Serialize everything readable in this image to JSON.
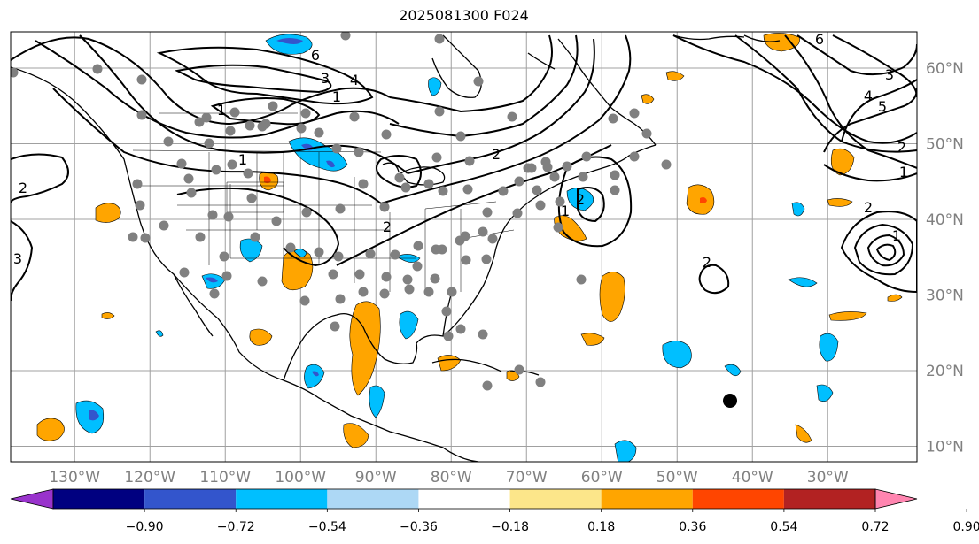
{
  "title": "2025081300 F024",
  "lat_labels": [
    {
      "text": "60°N",
      "lat": 60
    },
    {
      "text": "50°N",
      "lat": 50
    },
    {
      "text": "40°N",
      "lat": 40
    },
    {
      "text": "30°N",
      "lat": 30
    },
    {
      "text": "20°N",
      "lat": 20
    },
    {
      "text": "10°N",
      "lat": 10
    }
  ],
  "lon_labels": [
    {
      "text": "130°W",
      "lon": -130
    },
    {
      "text": "120°W",
      "lon": -120
    },
    {
      "text": "110°W",
      "lon": -110
    },
    {
      "text": "100°W",
      "lon": -100
    },
    {
      "text": "90°W",
      "lon": -90
    },
    {
      "text": "80°W",
      "lon": -80
    },
    {
      "text": "70°W",
      "lon": -70
    },
    {
      "text": "60°W",
      "lon": -60
    },
    {
      "text": "50°W",
      "lon": -50
    },
    {
      "text": "40°W",
      "lon": -40
    },
    {
      "text": "30°W",
      "lon": -30
    }
  ],
  "colorbar": {
    "colors": [
      "#9933cc",
      "#000080",
      "#3355cc",
      "#00bfff",
      "#add8f5",
      "#ffffff",
      "#fce68a",
      "#ffa500",
      "#ff4500",
      "#b22222",
      "#ff85b0"
    ],
    "tick_labels": [
      "−0.90",
      "−0.72",
      "−0.54",
      "−0.36",
      "−0.18",
      "0.18",
      "0.36",
      "0.54",
      "0.72",
      "0.90"
    ]
  },
  "contour_labels": [
    "6",
    "4",
    "3",
    "1",
    "1",
    "2",
    "2",
    "1",
    "2",
    "1",
    "2",
    "3",
    "6",
    "4",
    "5",
    "2",
    "1",
    "2",
    "1",
    "3",
    "2"
  ],
  "station_marker": {
    "label": "",
    "lon": -45,
    "lat": 16
  }
}
